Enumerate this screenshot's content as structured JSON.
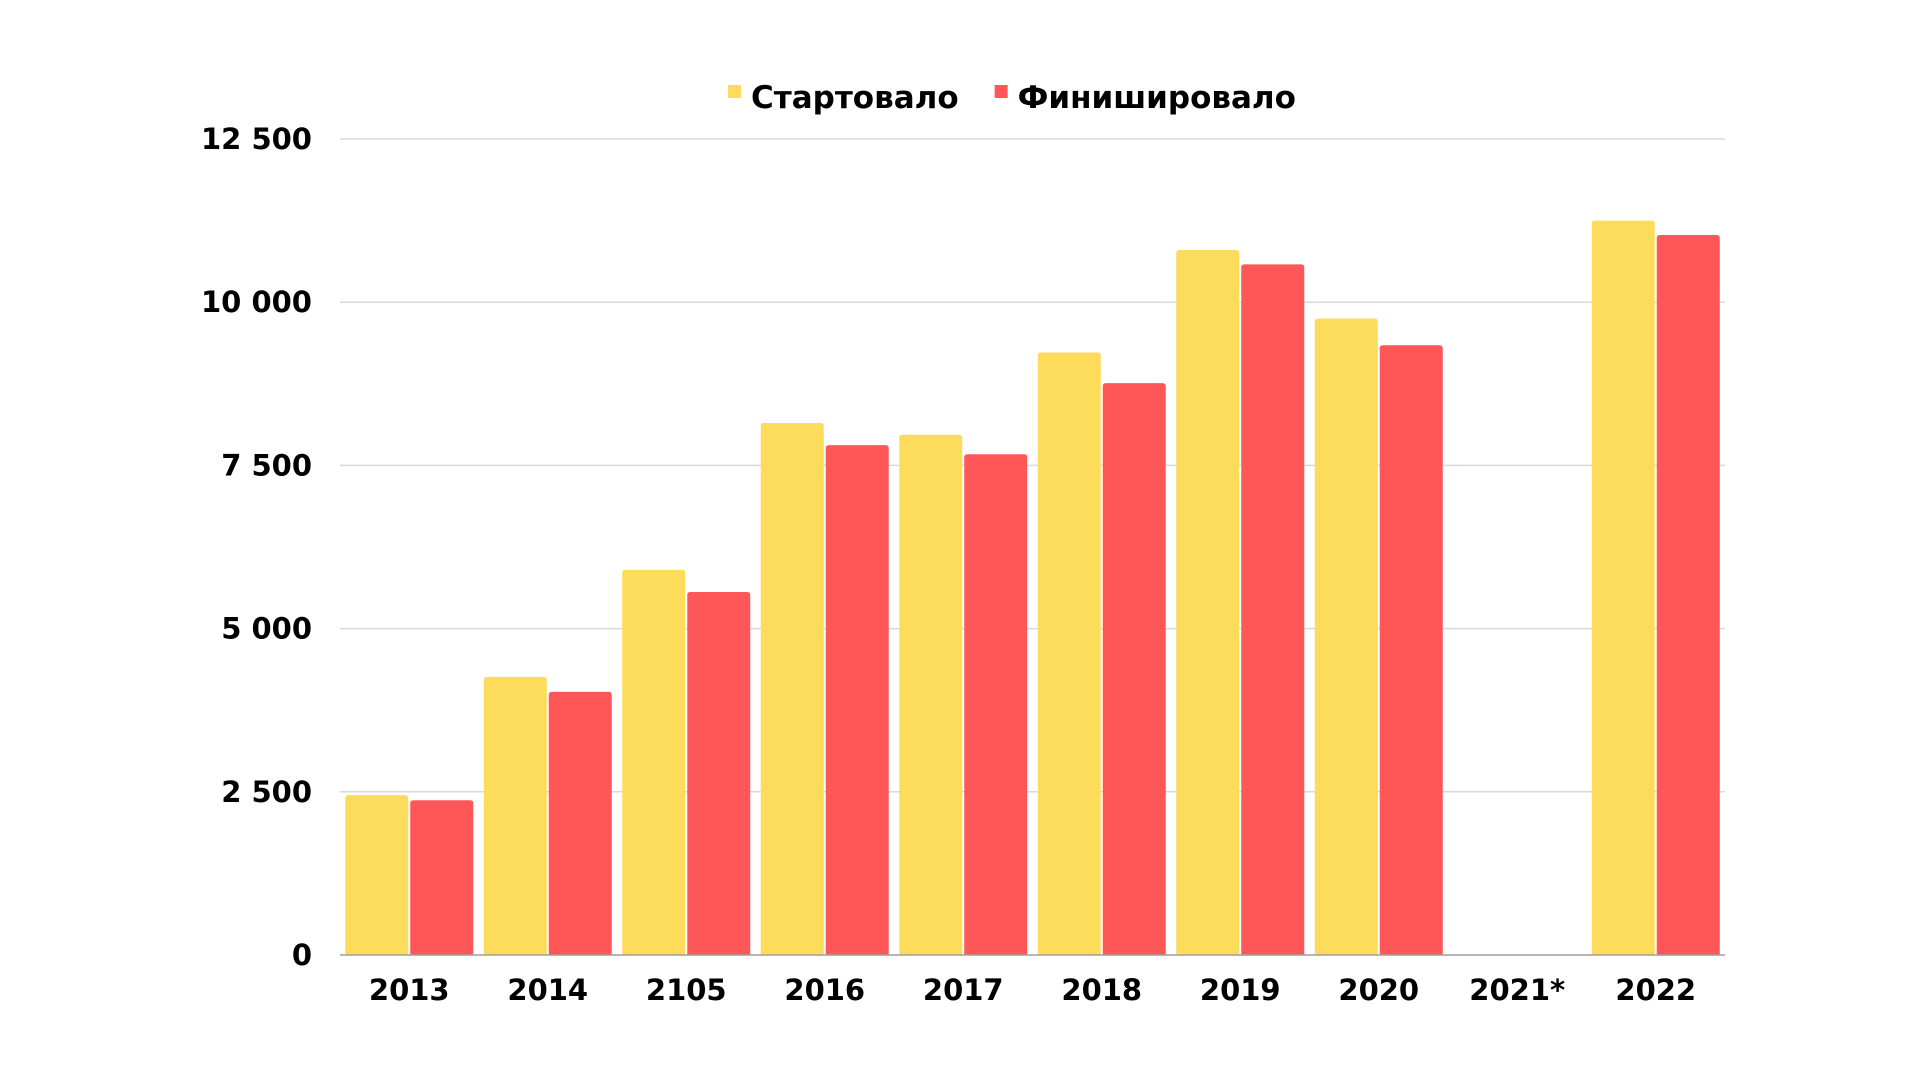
{
  "chart_data": {
    "type": "bar",
    "title": "",
    "xlabel": "",
    "ylabel": "",
    "categories": [
      "2013",
      "2014",
      "2105",
      "2016",
      "2017",
      "2018",
      "2019",
      "2020",
      "2021*",
      "2022"
    ],
    "series": [
      {
        "name": "Стартовало",
        "color": "#FDDC5C",
        "values": [
          2450,
          4260,
          5900,
          8150,
          7970,
          9230,
          10800,
          9750,
          null,
          11250
        ]
      },
      {
        "name": "Финишировало",
        "color": "#FF5757",
        "values": [
          2370,
          4030,
          5560,
          7810,
          7670,
          8760,
          10580,
          9340,
          null,
          11030
        ]
      }
    ],
    "yticks": [
      {
        "value": 0,
        "label": "0"
      },
      {
        "value": 2500,
        "label": "2 500"
      },
      {
        "value": 5000,
        "label": "5 000"
      },
      {
        "value": 7500,
        "label": "7 500"
      },
      {
        "value": 10000,
        "label": "10 000"
      },
      {
        "value": 12500,
        "label": "12 500"
      }
    ],
    "ylim": [
      0,
      12500
    ],
    "grid": true,
    "legend_position": "top-center"
  }
}
